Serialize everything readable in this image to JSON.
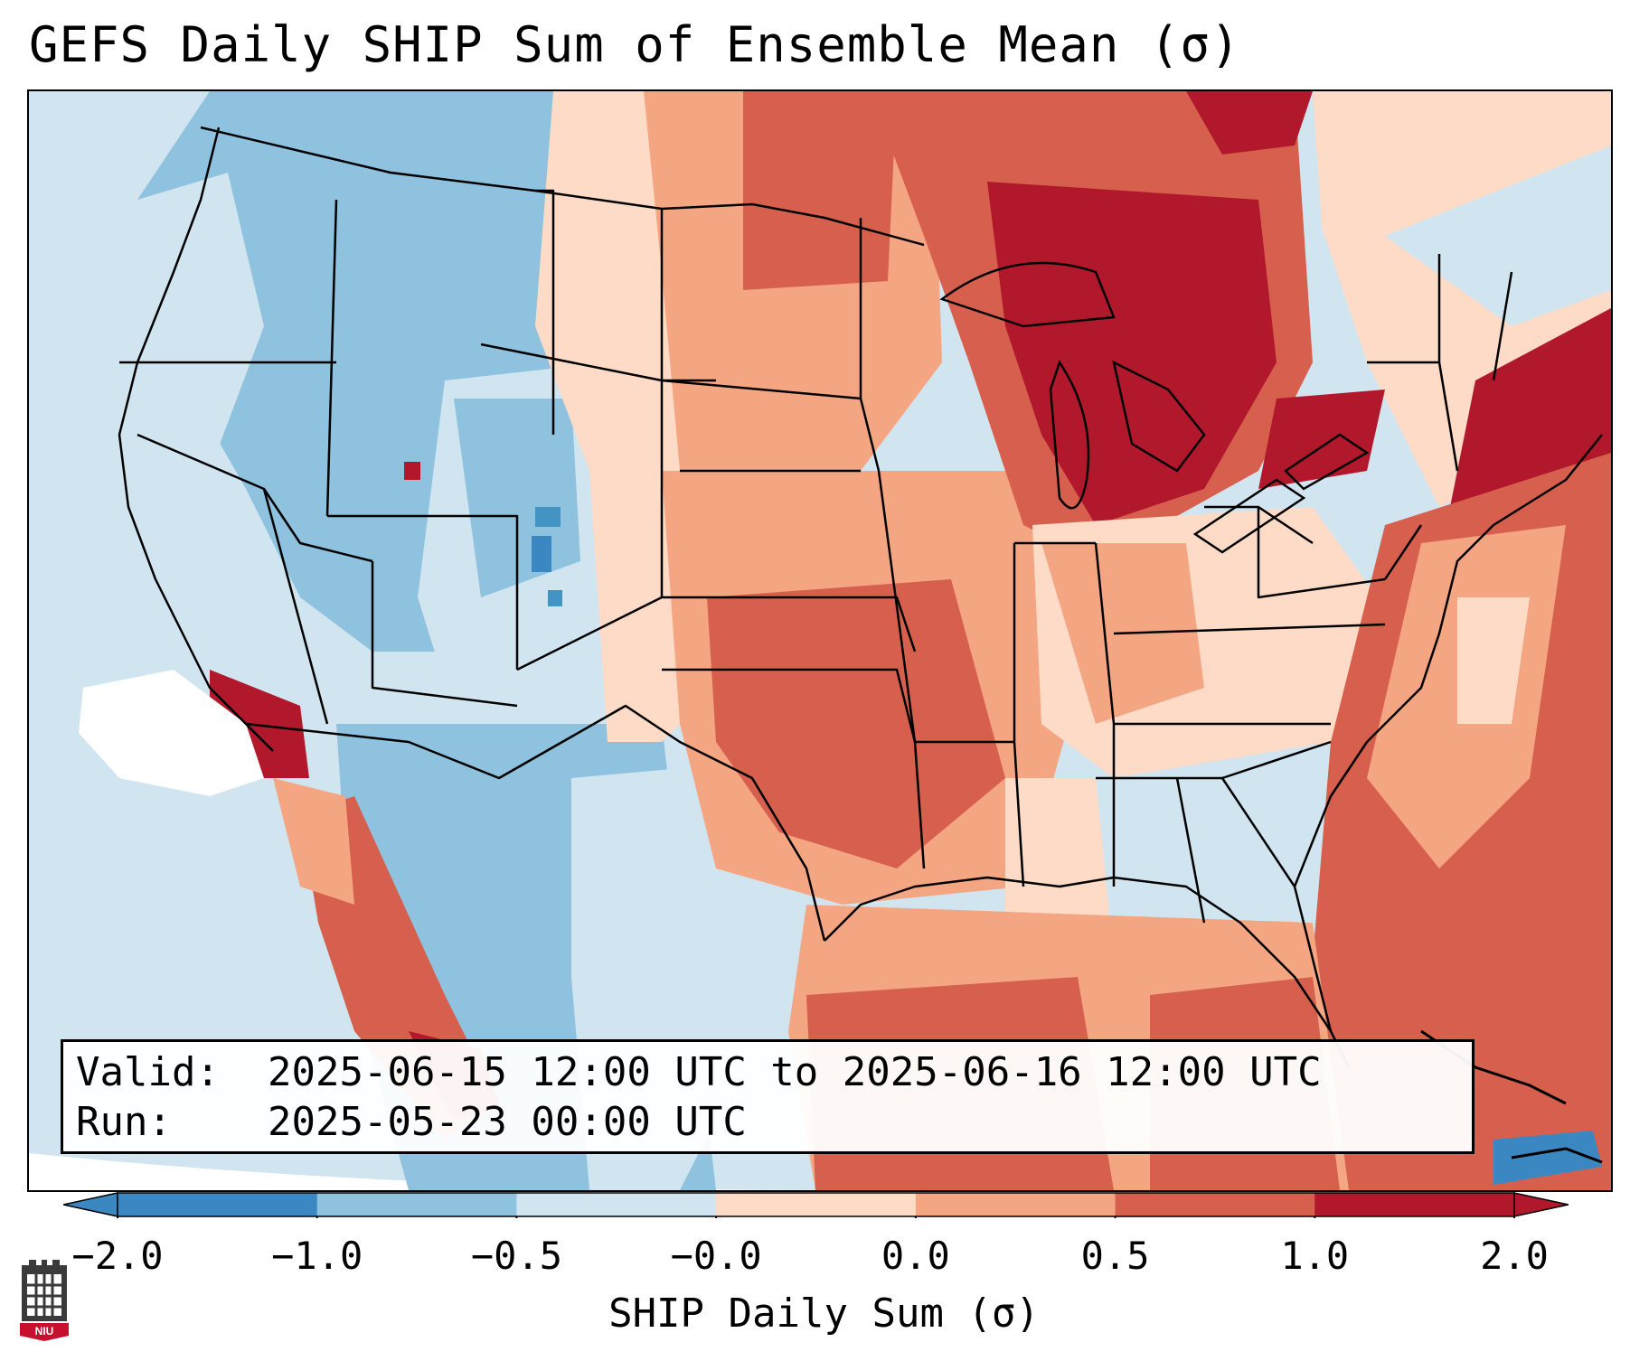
{
  "title": "GEFS Daily SHIP Sum of Ensemble Mean (σ)",
  "info": {
    "valid_label": "Valid:",
    "valid_value": "2025-06-15 12:00 UTC to 2025-06-16 12:00 UTC",
    "run_label": "Run:",
    "run_value": "2025-05-23 00:00 UTC"
  },
  "colorbar": {
    "label": "SHIP Daily Sum (σ)",
    "ticks": [
      "−2.0",
      "−1.0",
      "−0.5",
      "−0.0",
      "0.0",
      "0.5",
      "1.0",
      "2.0"
    ],
    "colors": [
      "#3a87c2",
      "#8fc2de",
      "#d1e5f0",
      "#f7f7f7",
      "#fddbc7",
      "#f4a582",
      "#d6604d",
      "#b2182b"
    ]
  },
  "map": {
    "region": "Contiguous United States",
    "outside_domain_color": "#d1e5f0"
  },
  "logo": {
    "text": "NIU"
  }
}
